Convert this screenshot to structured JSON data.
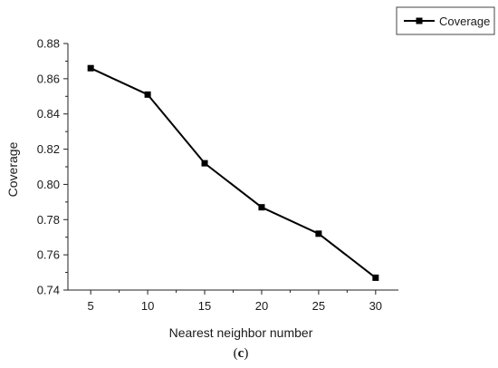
{
  "chart_data": {
    "type": "line",
    "xlabel": "Nearest neighbor number",
    "ylabel": "Coverage",
    "x": [
      5,
      10,
      15,
      20,
      25,
      30
    ],
    "xticks": [
      "5",
      "10",
      "15",
      "20",
      "25",
      "30"
    ],
    "ylim": [
      0.74,
      0.88
    ],
    "yticks": [
      "0.74",
      "0.76",
      "0.78",
      "0.80",
      "0.82",
      "0.84",
      "0.86",
      "0.88"
    ],
    "series": [
      {
        "name": "Coverage",
        "color": "#000000",
        "marker": "square",
        "values": [
          0.866,
          0.851,
          0.812,
          0.787,
          0.772,
          0.747
        ]
      }
    ],
    "legend": "top-right",
    "grid": false
  },
  "caption": {
    "open": "(",
    "letter": "c",
    "close": ")"
  }
}
